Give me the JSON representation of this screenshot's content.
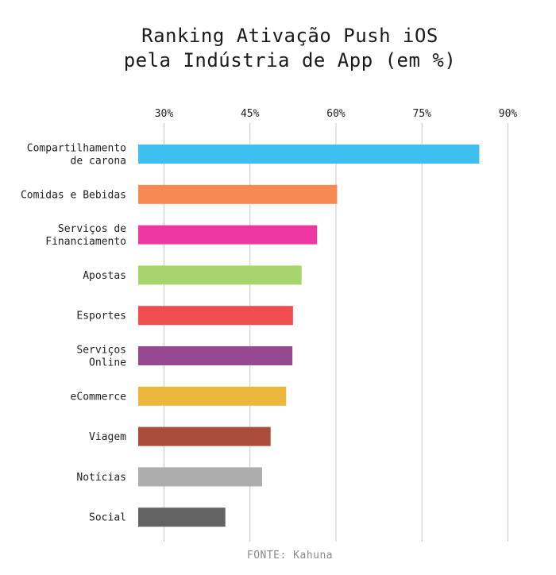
{
  "chart_data": {
    "type": "bar",
    "orientation": "horizontal",
    "title": [
      "Ranking Ativação Push iOS",
      "pela Indústria de App (em %)"
    ],
    "source": "FONTE: Kahuna",
    "x_ticks": [
      "30%",
      "45%",
      "60%",
      "75%",
      "90%"
    ],
    "x_tick_values": [
      30,
      45,
      60,
      75,
      90
    ],
    "xlim": [
      25.5,
      94.5
    ],
    "grid": true,
    "categories": [
      [
        "Compartilhamento",
        "de carona"
      ],
      [
        "Comidas e Bebidas"
      ],
      [
        "Serviços de",
        "Financiamento"
      ],
      [
        "Apostas"
      ],
      [
        "Esportes"
      ],
      [
        "Serviços",
        "Online"
      ],
      [
        "eCommerce"
      ],
      [
        "Viagem"
      ],
      [
        "Notícias"
      ],
      [
        "Social"
      ]
    ],
    "values": [
      85.0,
      60.2,
      56.7,
      54.0,
      52.5,
      52.4,
      51.3,
      48.6,
      47.1,
      40.7
    ],
    "colors": [
      "#3dbfef",
      "#f68a55",
      "#ef37a1",
      "#a7d46c",
      "#ef4d50",
      "#974990",
      "#ecb83c",
      "#aa4c3c",
      "#adadad",
      "#636363"
    ]
  }
}
